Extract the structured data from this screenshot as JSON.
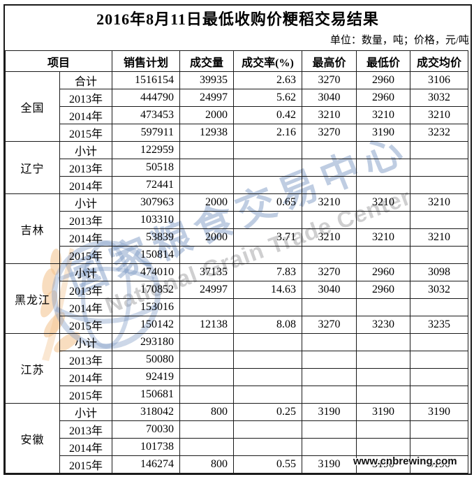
{
  "title": "2016年8月11日最低收购价粳稻交易结果",
  "units_note": "单位：数量，吨；价格，元/吨",
  "watermark": {
    "cn_text": "国家粮食交易中心",
    "en_text": "National Grain Trade Center",
    "site_text": "www.cnbrewing.com",
    "blue": "#809cc5",
    "gray": "#a8a8aa",
    "wheat": "#f3c18b"
  },
  "table": {
    "headers": [
      "项目",
      "销售计划",
      "成交量",
      "成交率(%)",
      "最高价",
      "最低价",
      "成交均价"
    ],
    "groups": [
      {
        "region": "全国",
        "rows": [
          {
            "label": "合计",
            "plan": "1516154",
            "volume": "39935",
            "rate": "2.63",
            "high": "3270",
            "low": "2960",
            "avg": "3106"
          },
          {
            "label": "2013年",
            "plan": "444790",
            "volume": "24997",
            "rate": "5.62",
            "high": "3040",
            "low": "2960",
            "avg": "3032"
          },
          {
            "label": "2014年",
            "plan": "473453",
            "volume": "2000",
            "rate": "0.42",
            "high": "3210",
            "low": "3210",
            "avg": "3210"
          },
          {
            "label": "2015年",
            "plan": "597911",
            "volume": "12938",
            "rate": "2.16",
            "high": "3270",
            "low": "3190",
            "avg": "3232"
          }
        ]
      },
      {
        "region": "辽宁",
        "rows": [
          {
            "label": "小计",
            "plan": "122959",
            "volume": "",
            "rate": "",
            "high": "",
            "low": "",
            "avg": ""
          },
          {
            "label": "2013年",
            "plan": "50518",
            "volume": "",
            "rate": "",
            "high": "",
            "low": "",
            "avg": ""
          },
          {
            "label": "2014年",
            "plan": "72441",
            "volume": "",
            "rate": "",
            "high": "",
            "low": "",
            "avg": ""
          }
        ]
      },
      {
        "region": "吉林",
        "rows": [
          {
            "label": "小计",
            "plan": "307963",
            "volume": "2000",
            "rate": "0.65",
            "high": "3210",
            "low": "3210",
            "avg": "3210"
          },
          {
            "label": "2013年",
            "plan": "103310",
            "volume": "",
            "rate": "",
            "high": "",
            "low": "",
            "avg": ""
          },
          {
            "label": "2014年",
            "plan": "53839",
            "volume": "2000",
            "rate": "3.71",
            "high": "3210",
            "low": "3210",
            "avg": "3210"
          },
          {
            "label": "2015年",
            "plan": "150814",
            "volume": "",
            "rate": "",
            "high": "",
            "low": "",
            "avg": ""
          }
        ]
      },
      {
        "region": "黑龙江",
        "rows": [
          {
            "label": "小计",
            "plan": "474010",
            "volume": "37135",
            "rate": "7.83",
            "high": "3270",
            "low": "2960",
            "avg": "3098"
          },
          {
            "label": "2013年",
            "plan": "170852",
            "volume": "24997",
            "rate": "14.63",
            "high": "3040",
            "low": "2960",
            "avg": "3032"
          },
          {
            "label": "2014年",
            "plan": "153016",
            "volume": "",
            "rate": "",
            "high": "",
            "low": "",
            "avg": ""
          },
          {
            "label": "2015年",
            "plan": "150142",
            "volume": "12138",
            "rate": "8.08",
            "high": "3270",
            "low": "3230",
            "avg": "3235"
          }
        ]
      },
      {
        "region": "江苏",
        "rows": [
          {
            "label": "小计",
            "plan": "293180",
            "volume": "",
            "rate": "",
            "high": "",
            "low": "",
            "avg": ""
          },
          {
            "label": "2013年",
            "plan": "50080",
            "volume": "",
            "rate": "",
            "high": "",
            "low": "",
            "avg": ""
          },
          {
            "label": "2014年",
            "plan": "92419",
            "volume": "",
            "rate": "",
            "high": "",
            "low": "",
            "avg": ""
          },
          {
            "label": "2015年",
            "plan": "150681",
            "volume": "",
            "rate": "",
            "high": "",
            "low": "",
            "avg": ""
          }
        ]
      },
      {
        "region": "安徽",
        "rows": [
          {
            "label": "小计",
            "plan": "318042",
            "volume": "800",
            "rate": "0.25",
            "high": "3190",
            "low": "3190",
            "avg": "3190"
          },
          {
            "label": "2013年",
            "plan": "70030",
            "volume": "",
            "rate": "",
            "high": "",
            "low": "",
            "avg": ""
          },
          {
            "label": "2014年",
            "plan": "101738",
            "volume": "",
            "rate": "",
            "high": "",
            "low": "",
            "avg": ""
          },
          {
            "label": "2015年",
            "plan": "146274",
            "volume": "800",
            "rate": "0.55",
            "high": "3190",
            "low": "3190",
            "avg": "3190"
          }
        ]
      }
    ]
  }
}
